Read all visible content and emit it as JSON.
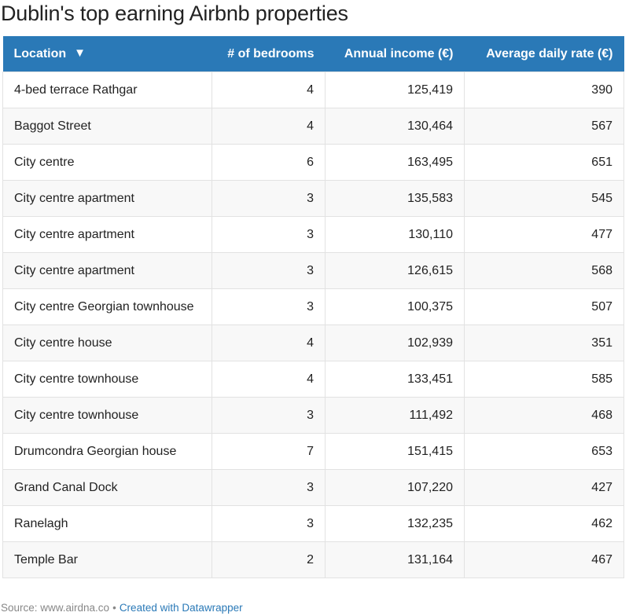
{
  "title": "Dublin's top earning Airbnb properties",
  "chart_data": {
    "type": "table",
    "title": "Dublin's top earning Airbnb properties",
    "columns": [
      "Location",
      "# of bedrooms",
      "Annual income (€)",
      "Average daily rate (€)"
    ],
    "sort_indicator": "▼",
    "rows": [
      [
        "4-bed terrace Rathgar",
        "4",
        "125,419",
        "390"
      ],
      [
        "Baggot Street",
        "4",
        "130,464",
        "567"
      ],
      [
        "City centre",
        "6",
        "163,495",
        "651"
      ],
      [
        "City centre apartment",
        "3",
        "135,583",
        "545"
      ],
      [
        "City centre apartment",
        "3",
        "130,110",
        "477"
      ],
      [
        "City centre apartment",
        "3",
        "126,615",
        "568"
      ],
      [
        "City centre Georgian townhouse",
        "3",
        "100,375",
        "507"
      ],
      [
        "City centre house",
        "4",
        "102,939",
        "351"
      ],
      [
        "City centre townhouse",
        "4",
        "133,451",
        "585"
      ],
      [
        "City centre townhouse",
        "3",
        "111,492",
        "468"
      ],
      [
        "Drumcondra Georgian house",
        "7",
        "151,415",
        "653"
      ],
      [
        "Grand Canal Dock",
        "3",
        "107,220",
        "427"
      ],
      [
        "Ranelagh",
        "3",
        "132,235",
        "462"
      ],
      [
        "Temple Bar",
        "2",
        "131,164",
        "467"
      ]
    ],
    "colors": {
      "header_background": "#2a79b7",
      "header_text": "#ffffff",
      "stripe": "#f8f8f8"
    }
  },
  "footer": {
    "source": "Source: www.airdna.co",
    "separator": "•",
    "credit": "Created with Datawrapper"
  }
}
